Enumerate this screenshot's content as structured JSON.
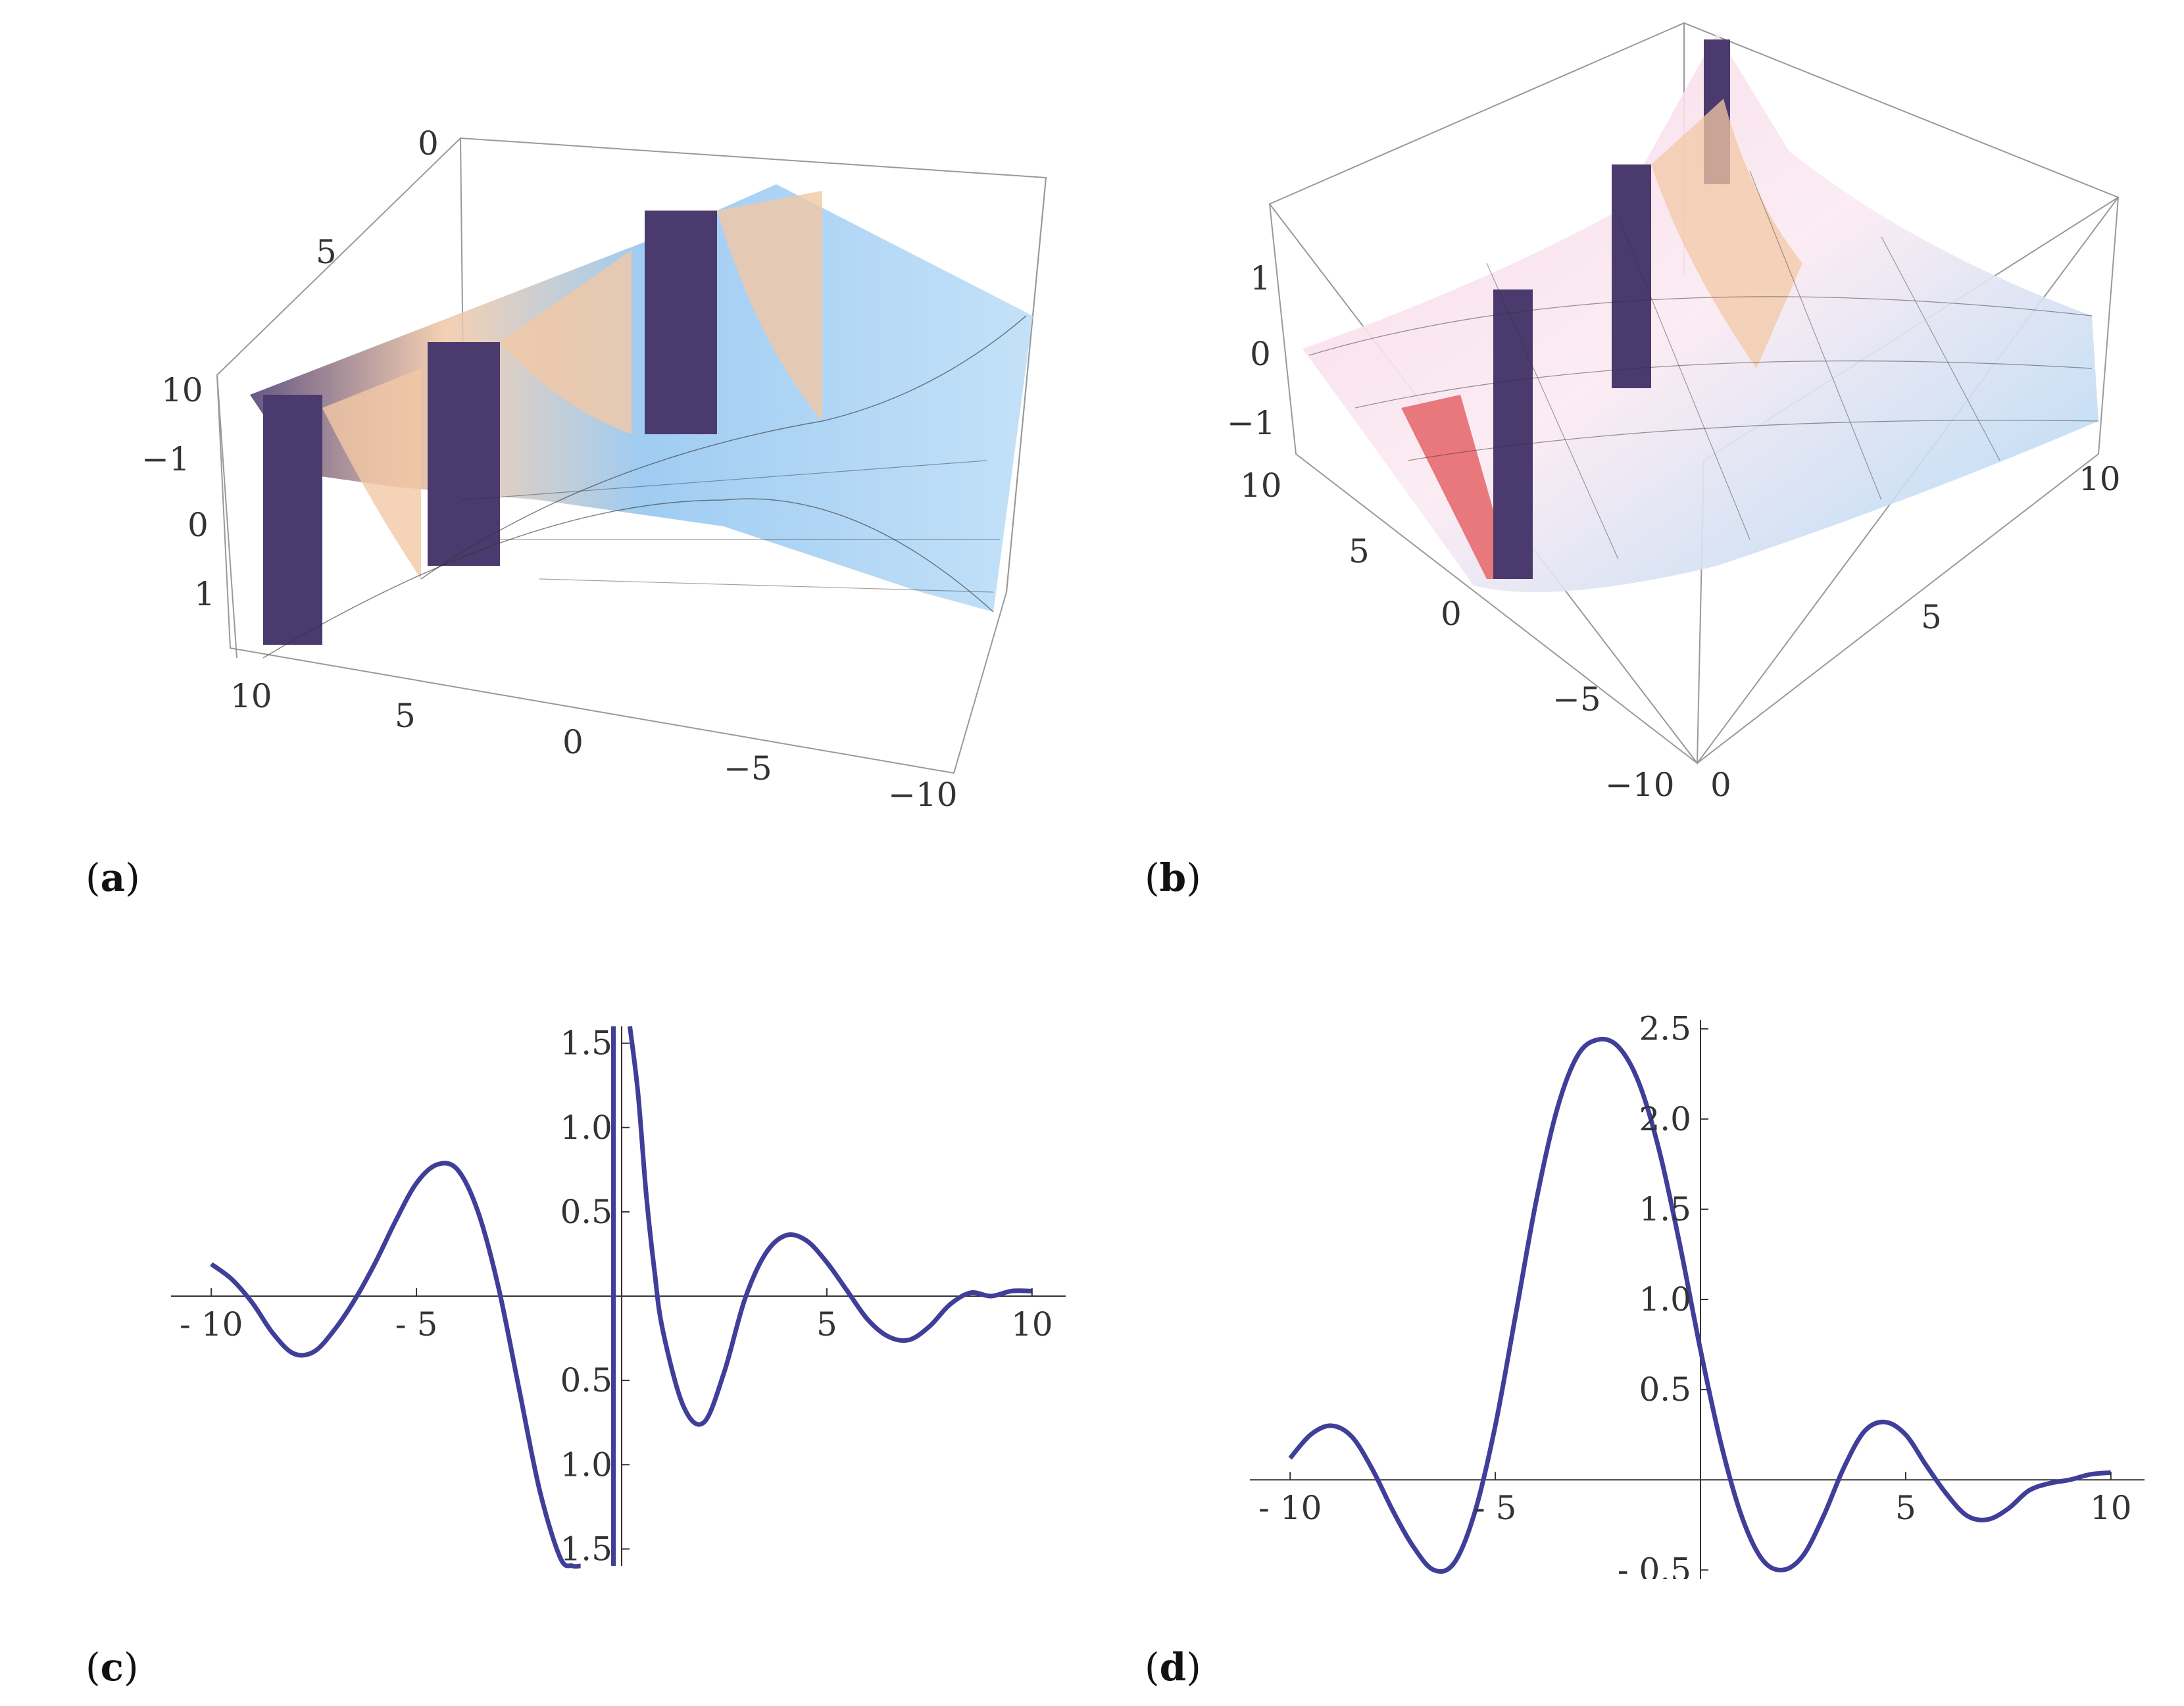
{
  "panels": [
    {
      "id": "a",
      "label_open": "(",
      "label_letter": "a",
      "label_close": ")"
    },
    {
      "id": "b",
      "label_open": "(",
      "label_letter": "b",
      "label_close": ")"
    },
    {
      "id": "c",
      "label_open": "(",
      "label_letter": "c",
      "label_close": ")"
    },
    {
      "id": "d",
      "label_open": "(",
      "label_letter": "d",
      "label_close": ")"
    }
  ],
  "chart_data": [
    {
      "panel": "a",
      "type": "surface3d",
      "x_ticks": [
        "10",
        "5",
        "0",
        "−5",
        "−10"
      ],
      "y_ticks": [
        "0",
        "5",
        "10"
      ],
      "z_ticks": [
        "−1",
        "0",
        "1"
      ],
      "xlim": [
        -10,
        10
      ],
      "ylim": [
        0,
        10
      ],
      "colors": {
        "dark": "#4b3a6e",
        "light": "#a8d4f5",
        "warm": "#f3c8a5"
      }
    },
    {
      "panel": "b",
      "type": "surface3d",
      "x_ticks": [
        "−10",
        "−5",
        "0",
        "5",
        "10"
      ],
      "y_ticks": [
        "0",
        "5",
        "10"
      ],
      "z_ticks": [
        "1",
        "0",
        "−1"
      ],
      "xlim": [
        -10,
        10
      ],
      "ylim": [
        0,
        10
      ],
      "colors": {
        "pink": "#f7d6e6",
        "blue": "#a9d6f5",
        "red": "#e9787c"
      }
    },
    {
      "panel": "c",
      "type": "line",
      "xlim": [
        -10.5,
        10.5
      ],
      "ylim": [
        -1.6,
        1.6
      ],
      "x_ticks": [
        -10,
        -5,
        5,
        10
      ],
      "x_tick_labels": [
        "- 10",
        "- 5",
        "5",
        "10"
      ],
      "y_ticks": [
        -1.5,
        -1.0,
        -0.5,
        0.5,
        1.0,
        1.5
      ],
      "y_tick_labels": [
        "1.5",
        "1.0",
        "0.5",
        "0.5",
        "1.0",
        "1.5"
      ],
      "color": "#3f3f9a",
      "series": [
        {
          "name": "c",
          "x": [
            -10,
            -9.5,
            -9,
            -8.5,
            -8,
            -7.5,
            -7,
            -6.5,
            -6,
            -5.5,
            -5,
            -4.5,
            -4,
            -3.5,
            -3,
            -2.5,
            -2,
            -1.5,
            -1.2,
            -1.0,
            null,
            -0.2,
            -0.2,
            null,
            0.2,
            0.4,
            0.6,
            0.8,
            1,
            1.5,
            2,
            2.5,
            3,
            3.5,
            4,
            4.5,
            5,
            5.5,
            6,
            6.5,
            7,
            7.5,
            8,
            8.5,
            9,
            9.5,
            10
          ],
          "y": [
            0.19,
            0.1,
            -0.04,
            -0.22,
            -0.34,
            -0.33,
            -0.2,
            -0.02,
            0.2,
            0.45,
            0.67,
            0.78,
            0.75,
            0.5,
            0.05,
            -0.55,
            -1.15,
            -1.55,
            -1.6,
            -1.6,
            null,
            -1.6,
            1.6,
            null,
            1.6,
            1.2,
            0.6,
            0.15,
            -0.2,
            -0.65,
            -0.75,
            -0.45,
            -0.02,
            0.25,
            0.36,
            0.33,
            0.2,
            0.03,
            -0.14,
            -0.24,
            -0.26,
            -0.18,
            -0.05,
            0.02,
            0.0,
            0.03,
            0.03
          ]
        }
      ]
    },
    {
      "panel": "d",
      "type": "line",
      "xlim": [
        -10.5,
        10.5
      ],
      "ylim": [
        -0.55,
        2.55
      ],
      "x_ticks": [
        -10,
        -5,
        5,
        10
      ],
      "x_tick_labels": [
        "- 10",
        "- 5",
        "5",
        "10"
      ],
      "y_ticks": [
        -0.5,
        0.5,
        1.0,
        1.5,
        2.0,
        2.5
      ],
      "y_tick_labels": [
        "- 0.5",
        "0.5",
        "1.0",
        "1.5",
        "2.0",
        "2.5"
      ],
      "color": "#3f3f9a",
      "series": [
        {
          "name": "d",
          "x": [
            -10,
            -9.5,
            -9,
            -8.5,
            -8,
            -7.5,
            -7,
            -6.5,
            -6,
            -5.5,
            -5,
            -4.5,
            -4,
            -3.5,
            -3,
            -2.5,
            -2,
            -1.5,
            -1,
            -0.5,
            0,
            0.5,
            1,
            1.5,
            2,
            2.5,
            3,
            3.5,
            4,
            4.5,
            5,
            5.5,
            6,
            6.5,
            7,
            7.5,
            8,
            8.5,
            9,
            9.5,
            10
          ],
          "y": [
            0.12,
            0.25,
            0.3,
            0.24,
            0.06,
            -0.17,
            -0.37,
            -0.5,
            -0.46,
            -0.18,
            0.3,
            0.92,
            1.55,
            2.05,
            2.35,
            2.44,
            2.4,
            2.2,
            1.82,
            1.3,
            0.72,
            0.2,
            -0.2,
            -0.44,
            -0.5,
            -0.42,
            -0.2,
            0.07,
            0.27,
            0.32,
            0.25,
            0.08,
            -0.08,
            -0.2,
            -0.22,
            -0.16,
            -0.06,
            -0.02,
            0.0,
            0.03,
            0.04
          ]
        }
      ]
    }
  ]
}
